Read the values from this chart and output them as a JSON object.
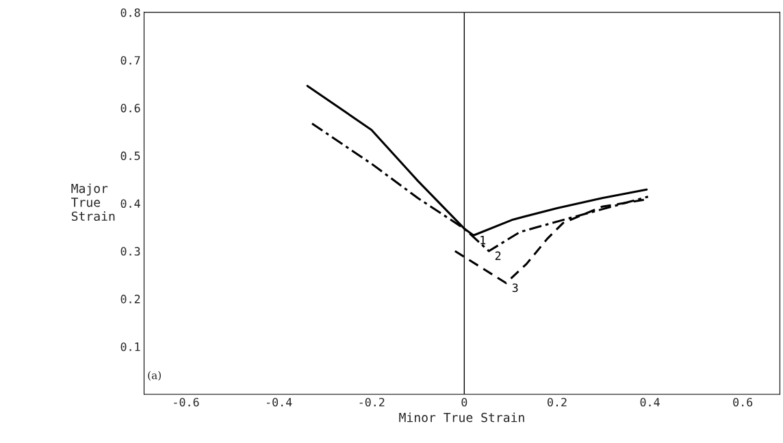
{
  "chart_data": {
    "type": "line",
    "xlabel": "Minor True Strain",
    "ylabel": "Major\nTrue\nStrain",
    "xlim": [
      -0.69,
      0.68
    ],
    "ylim": [
      0,
      0.8
    ],
    "xticks": [
      -0.6,
      -0.4,
      -0.2,
      0,
      0.2,
      0.4,
      0.6
    ],
    "yticks": [
      0.1,
      0.2,
      0.3,
      0.4,
      0.5,
      0.6,
      0.7,
      0.8
    ],
    "grid": false,
    "ref_lines": [
      {
        "axis": "x",
        "value": 0,
        "color": "#000000"
      }
    ],
    "annotations": [
      "(a)"
    ],
    "series": [
      {
        "name": "1",
        "color": "#000000",
        "line_style": "solid",
        "x": [
          -0.338,
          -0.2,
          -0.1,
          0,
          0.02,
          0.105,
          0.2,
          0.297,
          0.393
        ],
        "values": [
          0.646,
          0.554,
          0.447,
          0.347,
          0.333,
          0.366,
          0.39,
          0.411,
          0.429
        ]
      },
      {
        "name": "2",
        "color": "#000000",
        "line_style": "dashdot",
        "x": [
          -0.328,
          -0.2,
          -0.1,
          0,
          0.053,
          0.12,
          0.227,
          0.396
        ],
        "values": [
          0.567,
          0.483,
          0.411,
          0.347,
          0.3,
          0.34,
          0.369,
          0.414
        ]
      },
      {
        "name": "3",
        "color": "#000000",
        "line_style": "dashed",
        "x": [
          -0.02,
          0.09,
          0.134,
          0.179,
          0.213,
          0.297,
          0.396
        ],
        "values": [
          0.3,
          0.233,
          0.273,
          0.326,
          0.359,
          0.393,
          0.409
        ]
      }
    ]
  }
}
